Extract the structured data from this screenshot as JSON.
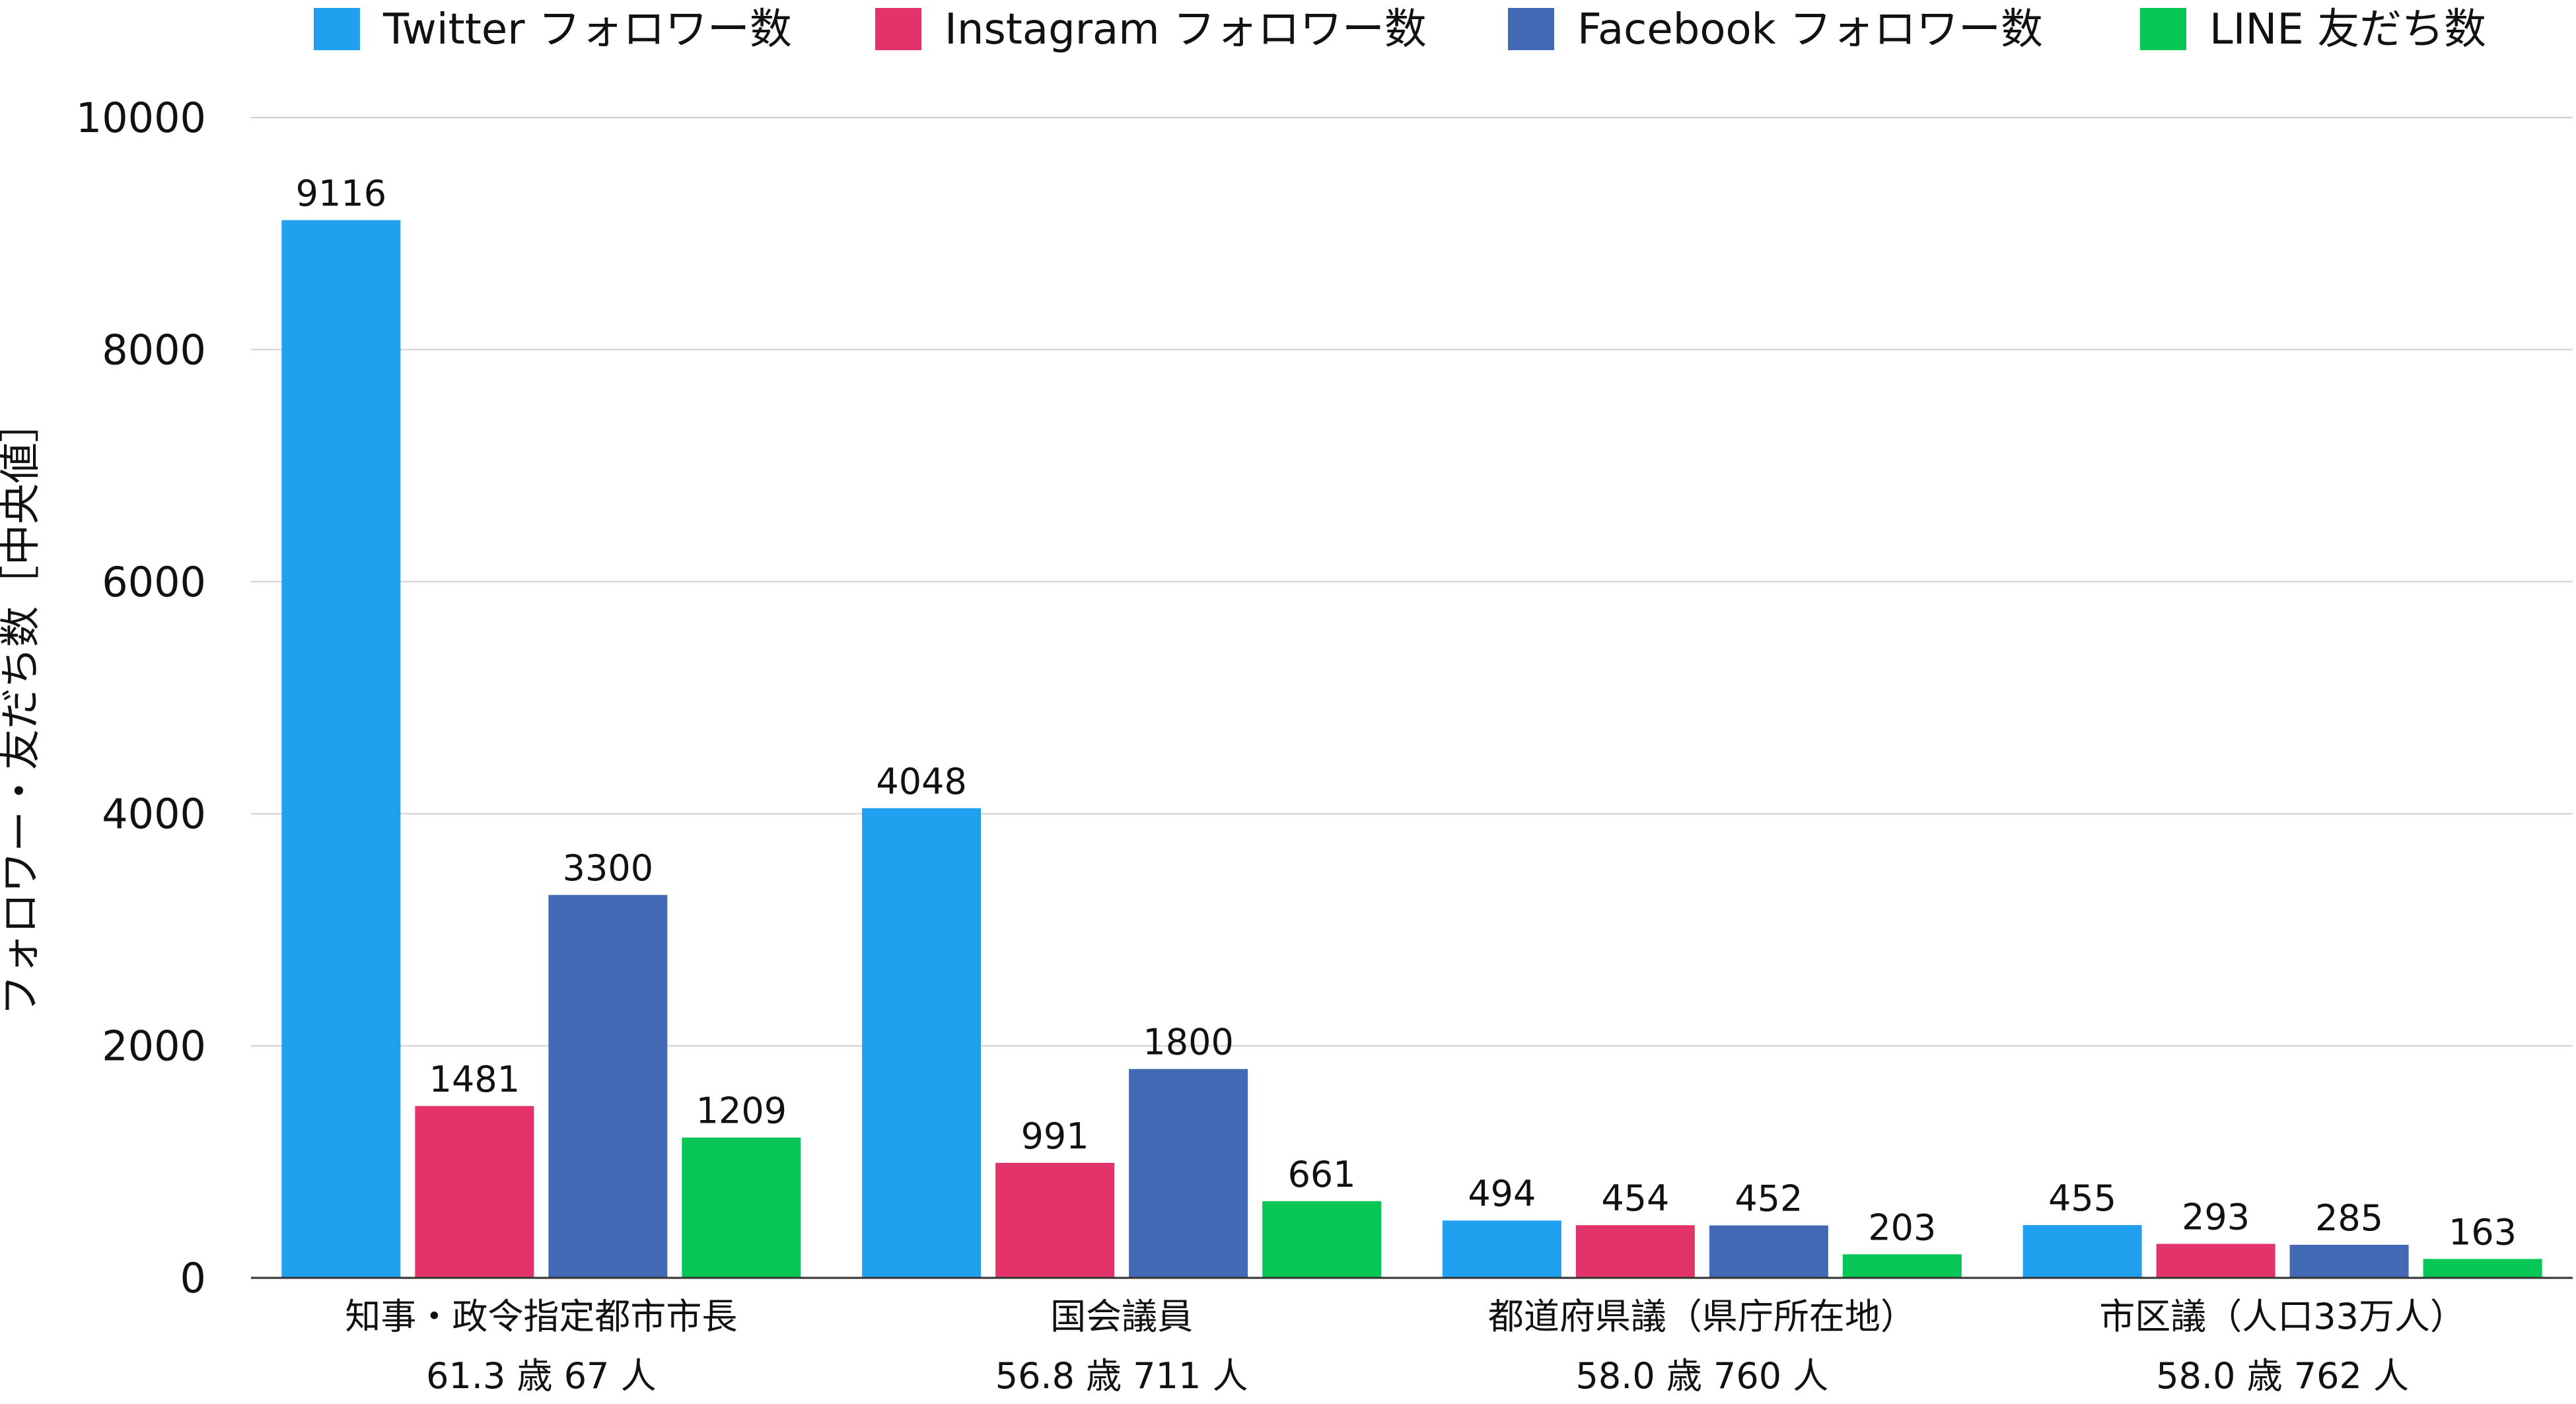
{
  "chart_data": {
    "type": "bar",
    "ylabel": "フォロワー・友だち数［中央値］",
    "ylim": [
      0,
      10000
    ],
    "yticks": [
      0,
      2000,
      4000,
      6000,
      8000,
      10000
    ],
    "grid": true,
    "legend_position": "top",
    "categories": [
      {
        "line1": "知事・政令指定都市市長",
        "line2": "61.3 歳 67 人"
      },
      {
        "line1": "国会議員",
        "line2": "56.8 歳 711 人"
      },
      {
        "line1": "都道府県議（県庁所在地）",
        "line2": "58.0 歳 760 人"
      },
      {
        "line1": "市区議（人口33万人）",
        "line2": "58.0 歳 762 人"
      }
    ],
    "series": [
      {
        "name": "Twitter フォロワー数",
        "color": "#22a0f0",
        "values": [
          9116,
          4048,
          494,
          455
        ]
      },
      {
        "name": "Instagram フォロワー数",
        "color": "#e3336b",
        "values": [
          1481,
          991,
          454,
          293
        ]
      },
      {
        "name": "Facebook フォロワー数",
        "color": "#4169b4",
        "values": [
          3300,
          1800,
          452,
          285
        ]
      },
      {
        "name": "LINE 友だち数",
        "color": "#06c755",
        "values": [
          1209,
          661,
          203,
          163
        ]
      }
    ]
  }
}
